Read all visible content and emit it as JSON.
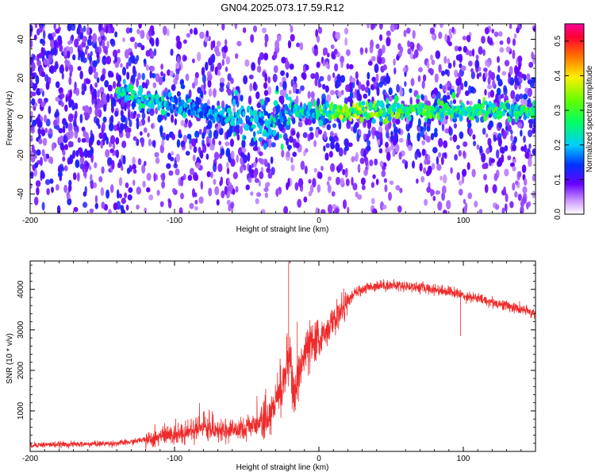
{
  "figure": {
    "title": "GN04.2025.073.17.59.R12"
  },
  "chart_data": [
    {
      "type": "heatmap",
      "xlabel": "Height of straight line (km)",
      "ylabel": "Frequency (Hz)",
      "xlim": [
        -200,
        150
      ],
      "ylim": [
        -50,
        48
      ],
      "xticks": [
        -200,
        -100,
        0,
        100
      ],
      "yticks": [
        -40,
        -20,
        0,
        20,
        40
      ],
      "colorbar": {
        "label": "Normalized spectral amplitude",
        "range": [
          0.0,
          0.55
        ],
        "ticks": [
          0.0,
          0.1,
          0.2,
          0.3,
          0.4,
          0.5
        ],
        "colormap": "rainbow (white-violet-blue-cyan-green-yellow-red-magenta)"
      },
      "ridge": {
        "description_points": [
          {
            "x": -135,
            "y": 12,
            "amp": 0.28
          },
          {
            "x": -90,
            "y": 4,
            "amp": 0.22
          },
          {
            "x": -40,
            "y": -3,
            "amp": 0.22
          },
          {
            "x": -20,
            "y": 2,
            "amp": 0.26
          },
          {
            "x": 0,
            "y": 3,
            "amp": 0.28
          },
          {
            "x": 15,
            "y": 2,
            "amp": 0.38
          },
          {
            "x": 50,
            "y": 3,
            "amp": 0.32
          },
          {
            "x": 100,
            "y": 3,
            "amp": 0.3
          },
          {
            "x": 148,
            "y": 3,
            "amp": 0.3
          }
        ]
      },
      "grid": false
    },
    {
      "type": "line",
      "xlabel": "Height of straight line (km)",
      "ylabel": "SNR (10 * v/v)",
      "xlim": [
        -200,
        150
      ],
      "ylim": [
        0,
        4700
      ],
      "xticks": [
        -200,
        -100,
        0,
        100
      ],
      "yticks": [
        1000,
        2000,
        3000,
        4000
      ],
      "color": "#ee2b2b",
      "grid": false,
      "series": [
        {
          "points": [
            [
              -200,
              160
            ],
            [
              -180,
              170
            ],
            [
              -160,
              180
            ],
            [
              -140,
              200
            ],
            [
              -130,
              230
            ],
            [
              -120,
              300
            ],
            [
              -110,
              360
            ],
            [
              -100,
              420
            ],
            [
              -90,
              500
            ],
            [
              -80,
              560
            ],
            [
              -70,
              520
            ],
            [
              -60,
              520
            ],
            [
              -50,
              560
            ],
            [
              -45,
              620
            ],
            [
              -40,
              760
            ],
            [
              -35,
              900
            ],
            [
              -30,
              1200
            ],
            [
              -25,
              1700
            ],
            [
              -22,
              2100
            ],
            [
              -20,
              2300
            ],
            [
              -17,
              1200
            ],
            [
              -15,
              1800
            ],
            [
              -10,
              2400
            ],
            [
              -5,
              2600
            ],
            [
              0,
              2700
            ],
            [
              5,
              3000
            ],
            [
              10,
              3200
            ],
            [
              15,
              3450
            ],
            [
              20,
              3700
            ],
            [
              25,
              3900
            ],
            [
              30,
              4000
            ],
            [
              40,
              4100
            ],
            [
              50,
              4100
            ],
            [
              60,
              4080
            ],
            [
              70,
              4050
            ],
            [
              80,
              4000
            ],
            [
              90,
              3950
            ],
            [
              100,
              3850
            ],
            [
              110,
              3780
            ],
            [
              120,
              3680
            ],
            [
              130,
              3600
            ],
            [
              140,
              3500
            ],
            [
              150,
              3400
            ]
          ],
          "spikes": [
            [
              -21,
              4700
            ],
            [
              -15,
              3200
            ],
            [
              98,
              3500
            ],
            [
              98,
              2850
            ]
          ]
        }
      ]
    }
  ]
}
